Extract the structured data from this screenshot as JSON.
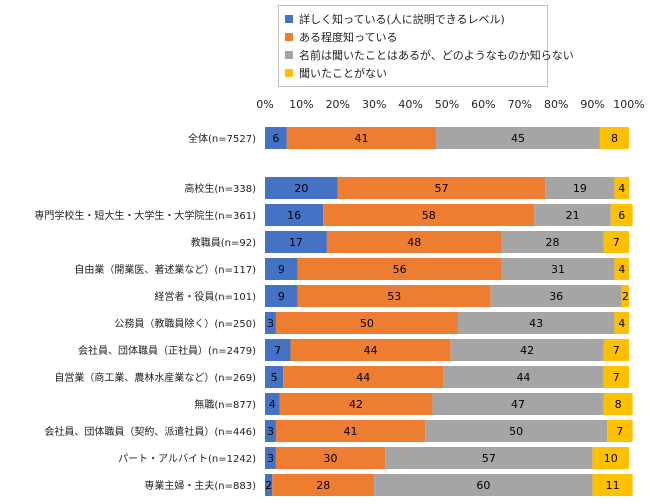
{
  "chart_data": {
    "type": "bar",
    "orientation": "horizontal",
    "stacked": true,
    "xlim": [
      0,
      100
    ],
    "x_ticks": [
      "0%",
      "10%",
      "20%",
      "30%",
      "40%",
      "50%",
      "60%",
      "70%",
      "80%",
      "90%",
      "100%"
    ],
    "grid": false,
    "legend_position": "top-right",
    "series": [
      {
        "name": "詳しく知っている(人に説明できるレベル)",
        "color": "#4472c4"
      },
      {
        "name": "ある程度知っている",
        "color": "#ed7d31"
      },
      {
        "name": "名前は聞いたことはあるが、どのようなものか知らない",
        "color": "#a5a5a5"
      },
      {
        "name": "聞いたことがない",
        "color": "#ffc000"
      }
    ],
    "categories": [
      {
        "label": "全体(n=7527)",
        "values": [
          6,
          41,
          45,
          8
        ]
      },
      {
        "label": "高校生(n=338)",
        "values": [
          20,
          57,
          19,
          4
        ]
      },
      {
        "label": "専門学校生・短大生・大学生・大学院生(n=361)",
        "values": [
          16,
          58,
          21,
          6
        ]
      },
      {
        "label": "教職員(n=92)",
        "values": [
          17,
          48,
          28,
          7
        ]
      },
      {
        "label": "自由業（開業医、著述業など）(n=117)",
        "values": [
          9,
          56,
          31,
          4
        ]
      },
      {
        "label": "経営者・役員(n=101)",
        "values": [
          9,
          53,
          36,
          2
        ]
      },
      {
        "label": "公務員（教職員除く）(n=250)",
        "values": [
          3,
          50,
          43,
          4
        ]
      },
      {
        "label": "会社員、団体職員（正社員）(n=2479)",
        "values": [
          7,
          44,
          42,
          7
        ]
      },
      {
        "label": "自営業（商工業、農林水産業など）(n=269)",
        "values": [
          5,
          44,
          44,
          7
        ]
      },
      {
        "label": "無職(n=877)",
        "values": [
          4,
          42,
          47,
          8
        ]
      },
      {
        "label": "会社員、団体職員（契約、派遣社員）(n=446)",
        "values": [
          3,
          41,
          50,
          7
        ]
      },
      {
        "label": "パート・アルバイト(n=1242)",
        "values": [
          3,
          30,
          57,
          10
        ]
      },
      {
        "label": "専業主婦・主夫(n=883)",
        "values": [
          2,
          28,
          60,
          11
        ]
      }
    ]
  }
}
